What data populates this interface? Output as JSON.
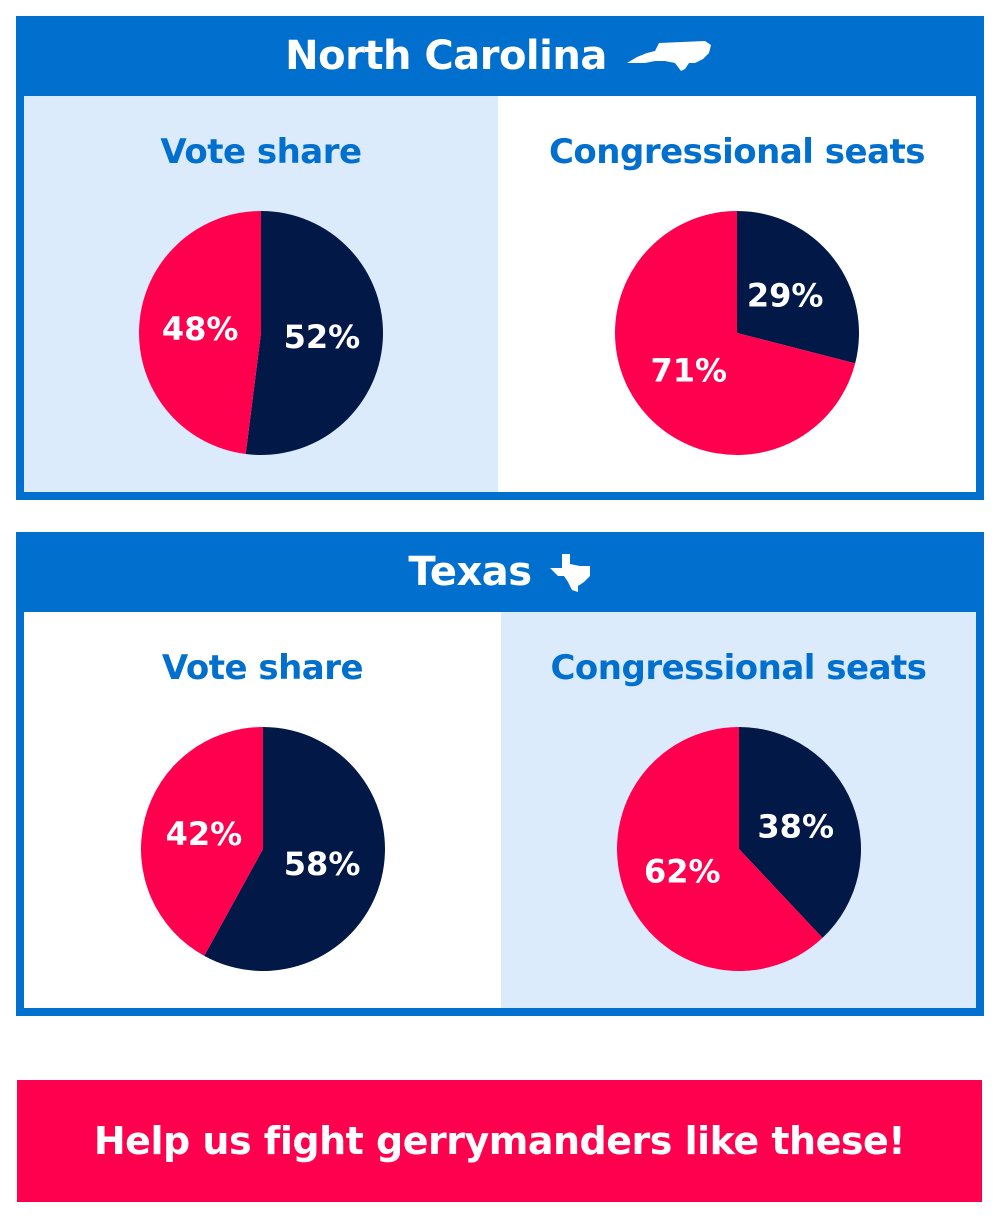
{
  "colors": {
    "header_blue": "#006fce",
    "panel_light": "#dbebfc",
    "navy": "#021847",
    "red": "#ff004f"
  },
  "chart_data": [
    {
      "type": "pie",
      "state": "North Carolina",
      "title": "Vote share",
      "slices": [
        {
          "value": 52,
          "label": "52%",
          "color": "#021847"
        },
        {
          "value": 48,
          "label": "48%",
          "color": "#ff004f"
        }
      ]
    },
    {
      "type": "pie",
      "state": "North Carolina",
      "title": "Congressional seats",
      "slices": [
        {
          "value": 29,
          "label": "29%",
          "color": "#021847"
        },
        {
          "value": 71,
          "label": "71%",
          "color": "#ff004f"
        }
      ]
    },
    {
      "type": "pie",
      "state": "Texas",
      "title": "Vote share",
      "slices": [
        {
          "value": 58,
          "label": "58%",
          "color": "#021847"
        },
        {
          "value": 42,
          "label": "42%",
          "color": "#ff004f"
        }
      ]
    },
    {
      "type": "pie",
      "state": "Texas",
      "title": "Congressional seats",
      "slices": [
        {
          "value": 38,
          "label": "38%",
          "color": "#021847"
        },
        {
          "value": 62,
          "label": "62%",
          "color": "#ff004f"
        }
      ]
    }
  ],
  "states": [
    {
      "name": "North Carolina",
      "icon": "north-carolina-state-icon"
    },
    {
      "name": "Texas",
      "icon": "texas-state-icon"
    }
  ],
  "cta": {
    "label": "Help us fight gerrymanders like these!"
  }
}
